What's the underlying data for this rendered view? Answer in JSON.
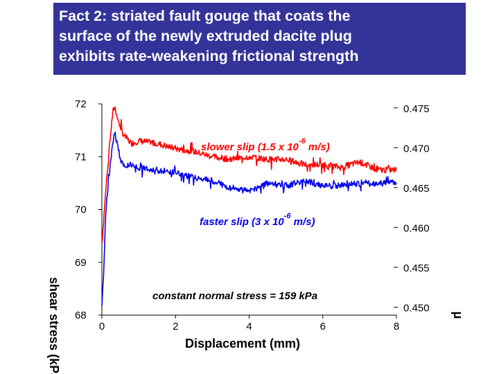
{
  "slide": {
    "title_lines": [
      "Fact 2: striated fault gouge that coats the",
      "surface of the newly extruded dacite plug",
      "exhibits rate-weakening frictional strength"
    ],
    "title_bg": "#333399",
    "title_fg": "#ffffff"
  },
  "chart_data": {
    "type": "line",
    "xlabel": "Displacement (mm)",
    "ylabel_left": "shear stress (kPa)",
    "ylabel_right": "μ",
    "x_ticks": [
      "0",
      "2",
      "4",
      "6",
      "8"
    ],
    "y_left_ticks": [
      "68",
      "69",
      "70",
      "71",
      "72"
    ],
    "y_right_ticks": [
      "0.450",
      "0.455",
      "0.460",
      "0.465",
      "0.470",
      "0.475"
    ],
    "xlim": [
      0,
      8
    ],
    "ylim_left": [
      68,
      72
    ],
    "ylim_right": [
      0.449,
      0.4755
    ],
    "series": [
      {
        "label": "slower slip (1.5 x 10-6 m/s)",
        "color": "#ff0000",
        "x": [
          0.0,
          0.1,
          0.2,
          0.3,
          0.35,
          0.5,
          0.6,
          0.8,
          1.0,
          1.5,
          2.0,
          2.5,
          3.0,
          3.5,
          4.0,
          4.5,
          5.0,
          5.5,
          6.0,
          6.5,
          7.0,
          7.5,
          8.0
        ],
        "y": [
          69.35,
          70.3,
          71.2,
          71.85,
          71.95,
          71.55,
          71.4,
          71.25,
          71.3,
          71.25,
          71.15,
          71.1,
          71.0,
          70.95,
          71.0,
          70.95,
          70.95,
          70.85,
          70.85,
          70.8,
          70.9,
          70.75,
          70.75
        ]
      },
      {
        "label": "faster slip (3 x 10-6 m/s)",
        "color": "#0000ee",
        "x": [
          0.0,
          0.05,
          0.1,
          0.2,
          0.3,
          0.35,
          0.5,
          0.6,
          0.8,
          1.0,
          1.5,
          2.0,
          2.5,
          3.0,
          3.5,
          4.0,
          4.5,
          5.0,
          5.5,
          6.0,
          6.5,
          7.0,
          7.5,
          8.0
        ],
        "y": [
          68.15,
          68.8,
          69.9,
          70.7,
          71.3,
          71.45,
          70.95,
          70.85,
          70.85,
          70.8,
          70.75,
          70.7,
          70.6,
          70.55,
          70.4,
          70.35,
          70.5,
          70.45,
          70.55,
          70.45,
          70.45,
          70.5,
          70.5,
          70.5
        ]
      }
    ],
    "annotations": {
      "slow_label": "slower slip (1.5 x 10",
      "slow_exp": "-6",
      "slow_unit": " m/s)",
      "fast_label": "faster slip (3 x 10",
      "fast_exp": "-6",
      "fast_unit": " m/s)",
      "normal_stress": "constant normal stress = 159 kPa"
    },
    "grid": false
  }
}
